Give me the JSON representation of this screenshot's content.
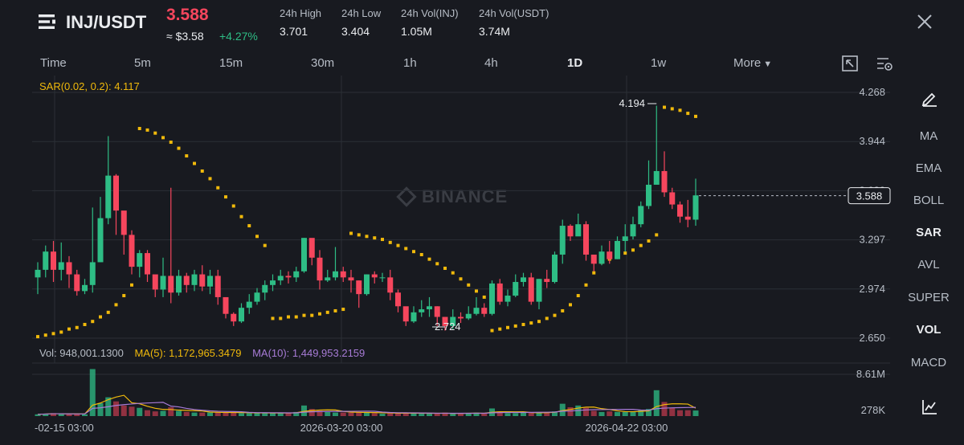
{
  "header": {
    "pair": "INJ/USDT",
    "price": "3.588",
    "approx": "≈ $3.58",
    "change": "+4.27%",
    "stats": [
      {
        "label": "24h High",
        "value": "3.701"
      },
      {
        "label": "24h Low",
        "value": "3.404"
      },
      {
        "label": "24h Vol(INJ)",
        "value": "1.05M"
      },
      {
        "label": "24h Vol(USDT)",
        "value": "3.74M"
      }
    ]
  },
  "intervals": [
    "Time",
    "5m",
    "15m",
    "30m",
    "1h",
    "4h",
    "1D",
    "1w",
    "More"
  ],
  "active_interval": "1D",
  "sidebar": [
    "MA",
    "EMA",
    "BOLL",
    "SAR",
    "AVL",
    "SUPER",
    "VOL",
    "MACD"
  ],
  "active_indicators": [
    "SAR",
    "VOL"
  ],
  "watermark": "BINANCE",
  "chart_data": {
    "type": "candlestick",
    "sar_label": "SAR(0.02, 0.2): 4.117",
    "price_axis": [
      "4.268",
      "3.944",
      "3.620",
      "3.297",
      "2.974",
      "2.650"
    ],
    "current_price_label": "3.588",
    "high_marker": "4.194",
    "low_marker": "2.724",
    "volume_axis": [
      "8.61M",
      "278K"
    ],
    "volume_legend": {
      "vol": "Vol: 948,001.1300",
      "ma5": "MA(5): 1,172,965.3479",
      "ma10": "MA(10): 1,449,953.2159"
    },
    "x_labels": [
      "-02-15 03:00",
      "2026-03-20 03:00",
      "2026-04-22 03:00"
    ],
    "y_range": [
      2.65,
      4.268
    ],
    "vol_max": 8610000,
    "candles": [
      [
        3.05,
        3.1,
        3.15,
        2.94
      ],
      [
        3.1,
        3.22,
        3.26,
        3.05
      ],
      [
        3.22,
        3.1,
        3.29,
        3.02
      ],
      [
        3.1,
        3.15,
        3.28,
        3.03
      ],
      [
        3.15,
        3.07,
        3.19,
        2.98
      ],
      [
        3.07,
        2.96,
        3.1,
        2.93
      ],
      [
        2.96,
        3.0,
        3.04,
        2.94
      ],
      [
        3.0,
        3.15,
        3.51,
        2.95
      ],
      [
        3.15,
        3.44,
        3.58,
        3.15
      ],
      [
        3.44,
        3.72,
        3.98,
        3.4
      ],
      [
        3.72,
        3.49,
        3.73,
        3.33
      ],
      [
        3.49,
        3.33,
        3.48,
        3.2
      ],
      [
        3.33,
        3.12,
        3.36,
        3.07
      ],
      [
        3.12,
        3.21,
        3.23,
        3.05
      ],
      [
        3.21,
        3.07,
        3.23,
        3.02
      ],
      [
        3.07,
        2.97,
        3.06,
        2.92
      ],
      [
        2.97,
        3.06,
        3.18,
        2.92
      ],
      [
        3.06,
        2.95,
        3.64,
        2.88
      ],
      [
        2.95,
        3.06,
        3.1,
        2.93
      ],
      [
        3.06,
        3.0,
        3.08,
        2.95
      ],
      [
        3.0,
        3.07,
        3.1,
        2.96
      ],
      [
        3.07,
        2.99,
        3.13,
        2.96
      ],
      [
        2.99,
        3.06,
        3.1,
        2.94
      ],
      [
        3.06,
        2.92,
        3.1,
        2.87
      ],
      [
        2.92,
        2.81,
        2.91,
        2.78
      ],
      [
        2.81,
        2.76,
        2.82,
        2.73
      ],
      [
        2.76,
        2.85,
        2.88,
        2.75
      ],
      [
        2.85,
        2.89,
        2.94,
        2.81
      ],
      [
        2.89,
        2.95,
        2.98,
        2.87
      ],
      [
        2.95,
        3.0,
        3.03,
        2.9
      ],
      [
        3.0,
        3.03,
        3.07,
        2.96
      ],
      [
        3.03,
        3.06,
        3.1,
        3.0
      ],
      [
        3.06,
        3.05,
        3.09,
        3.01
      ],
      [
        3.05,
        3.09,
        3.12,
        3.02
      ],
      [
        3.09,
        3.31,
        3.31,
        3.08
      ],
      [
        3.31,
        3.18,
        3.29,
        3.13
      ],
      [
        3.18,
        3.03,
        3.23,
        2.97
      ],
      [
        3.03,
        3.05,
        3.1,
        3.02
      ],
      [
        3.05,
        3.09,
        3.25,
        3.03
      ],
      [
        3.09,
        3.05,
        3.12,
        3.02
      ],
      [
        3.05,
        3.03,
        3.1,
        2.95
      ],
      [
        3.03,
        2.94,
        3.03,
        2.85
      ],
      [
        2.94,
        3.07,
        3.07,
        2.93
      ],
      [
        3.07,
        3.05,
        3.09,
        3.01
      ],
      [
        3.05,
        3.05,
        3.08,
        3.02
      ],
      [
        3.05,
        2.95,
        3.1,
        2.9
      ],
      [
        2.95,
        2.86,
        2.97,
        2.82
      ],
      [
        2.86,
        2.76,
        2.84,
        2.73
      ],
      [
        2.76,
        2.82,
        2.86,
        2.75
      ],
      [
        2.82,
        2.84,
        2.9,
        2.79
      ],
      [
        2.84,
        2.86,
        2.92,
        2.79
      ],
      [
        2.86,
        2.79,
        2.86,
        2.73
      ],
      [
        2.79,
        2.73,
        2.79,
        2.7
      ],
      [
        2.73,
        2.79,
        2.84,
        2.71
      ],
      [
        2.79,
        2.78,
        2.82,
        2.75
      ],
      [
        2.78,
        2.81,
        2.86,
        2.77
      ],
      [
        2.81,
        2.85,
        2.92,
        2.8
      ],
      [
        2.85,
        2.81,
        2.88,
        2.79
      ],
      [
        2.81,
        3.01,
        3.03,
        2.8
      ],
      [
        3.01,
        2.89,
        3.04,
        2.87
      ],
      [
        2.89,
        2.93,
        2.97,
        2.86
      ],
      [
        2.93,
        3.02,
        3.07,
        2.92
      ],
      [
        3.02,
        3.05,
        3.08,
        2.99
      ],
      [
        3.05,
        2.89,
        3.08,
        2.87
      ],
      [
        2.89,
        3.04,
        3.04,
        2.84
      ],
      [
        3.04,
        3.02,
        3.1,
        2.98
      ],
      [
        3.02,
        3.2,
        3.22,
        3.01
      ],
      [
        3.2,
        3.39,
        3.43,
        3.14
      ],
      [
        3.39,
        3.32,
        3.4,
        3.29
      ],
      [
        3.32,
        3.4,
        3.47,
        3.33
      ],
      [
        3.4,
        3.2,
        3.42,
        3.16
      ],
      [
        3.2,
        3.14,
        3.19,
        3.09
      ],
      [
        3.14,
        3.22,
        3.26,
        3.13
      ],
      [
        3.22,
        3.17,
        3.29,
        3.14
      ],
      [
        3.17,
        3.29,
        3.32,
        3.17
      ],
      [
        3.29,
        3.32,
        3.4,
        3.22
      ],
      [
        3.32,
        3.4,
        3.45,
        3.3
      ],
      [
        3.4,
        3.52,
        3.55,
        3.38
      ],
      [
        3.52,
        3.66,
        3.82,
        3.5
      ],
      [
        3.66,
        3.75,
        4.18,
        3.7
      ],
      [
        3.75,
        3.61,
        3.88,
        3.58
      ],
      [
        3.61,
        3.53,
        3.64,
        3.5
      ],
      [
        3.53,
        3.45,
        3.55,
        3.41
      ],
      [
        3.45,
        3.43,
        3.56,
        3.38
      ],
      [
        3.43,
        3.59,
        3.7,
        3.39
      ]
    ],
    "volumes": [
      0.3,
      0.4,
      0.5,
      0.4,
      0.3,
      0.3,
      0.3,
      8.0,
      2.2,
      3.2,
      2.5,
      1.8,
      1.6,
      1.4,
      1.0,
      0.8,
      0.9,
      1.5,
      0.9,
      0.7,
      0.6,
      0.6,
      0.6,
      0.7,
      0.6,
      0.6,
      0.5,
      0.5,
      0.5,
      0.6,
      0.5,
      0.5,
      0.5,
      0.7,
      1.8,
      1.2,
      0.9,
      0.7,
      0.6,
      0.6,
      0.6,
      0.7,
      0.6,
      0.5,
      0.4,
      0.5,
      0.5,
      0.6,
      0.5,
      0.4,
      0.4,
      0.5,
      0.6,
      0.4,
      0.4,
      0.5,
      0.6,
      0.5,
      1.3,
      0.8,
      0.5,
      0.5,
      0.6,
      0.6,
      0.6,
      0.6,
      0.8,
      2.1,
      1.5,
      1.8,
      1.4,
      0.9,
      0.7,
      0.8,
      0.7,
      0.7,
      0.8,
      1.0,
      1.2,
      4.4,
      2.4,
      1.4,
      1.0,
      1.0,
      0.95
    ],
    "sar": [
      [
        0,
        2.66
      ],
      [
        1,
        2.67
      ],
      [
        2,
        2.68
      ],
      [
        3,
        2.69
      ],
      [
        4,
        2.71
      ],
      [
        5,
        2.72
      ],
      [
        6,
        2.74
      ],
      [
        7,
        2.76
      ],
      [
        8,
        2.79
      ],
      [
        9,
        2.82
      ],
      [
        10,
        2.87
      ],
      [
        11,
        2.93
      ],
      [
        12,
        3.0
      ],
      [
        13,
        4.03
      ],
      [
        14,
        4.02
      ],
      [
        15,
        4.0
      ],
      [
        16,
        3.97
      ],
      [
        17,
        3.94
      ],
      [
        18,
        3.9
      ],
      [
        19,
        3.85
      ],
      [
        20,
        3.8
      ],
      [
        21,
        3.75
      ],
      [
        22,
        3.7
      ],
      [
        23,
        3.64
      ],
      [
        24,
        3.58
      ],
      [
        25,
        3.52
      ],
      [
        26,
        3.45
      ],
      [
        27,
        3.39
      ],
      [
        28,
        3.32
      ],
      [
        29,
        3.26
      ],
      [
        30,
        2.78
      ],
      [
        31,
        2.78
      ],
      [
        32,
        2.79
      ],
      [
        33,
        2.79
      ],
      [
        34,
        2.8
      ],
      [
        35,
        2.8
      ],
      [
        36,
        2.81
      ],
      [
        37,
        2.82
      ],
      [
        38,
        2.83
      ],
      [
        39,
        2.84
      ],
      [
        40,
        3.34
      ],
      [
        41,
        3.33
      ],
      [
        42,
        3.32
      ],
      [
        43,
        3.31
      ],
      [
        44,
        3.3
      ],
      [
        45,
        3.28
      ],
      [
        46,
        3.26
      ],
      [
        47,
        3.24
      ],
      [
        48,
        3.22
      ],
      [
        49,
        3.2
      ],
      [
        50,
        3.17
      ],
      [
        51,
        3.14
      ],
      [
        52,
        3.11
      ],
      [
        53,
        3.08
      ],
      [
        54,
        3.04
      ],
      [
        55,
        3.0
      ],
      [
        56,
        2.96
      ],
      [
        57,
        2.92
      ],
      [
        58,
        2.7
      ],
      [
        59,
        2.71
      ],
      [
        60,
        2.72
      ],
      [
        61,
        2.73
      ],
      [
        62,
        2.74
      ],
      [
        63,
        2.75
      ],
      [
        64,
        2.76
      ],
      [
        65,
        2.78
      ],
      [
        66,
        2.8
      ],
      [
        67,
        2.83
      ],
      [
        68,
        2.87
      ],
      [
        69,
        2.93
      ],
      [
        70,
        3.0
      ],
      [
        71,
        3.08
      ],
      [
        72,
        3.15
      ],
      [
        73,
        3.17
      ],
      [
        74,
        3.19
      ],
      [
        75,
        3.21
      ],
      [
        76,
        3.23
      ],
      [
        77,
        3.26
      ],
      [
        78,
        3.29
      ],
      [
        79,
        3.33
      ],
      [
        80,
        4.17
      ],
      [
        81,
        4.16
      ],
      [
        82,
        4.15
      ],
      [
        83,
        4.13
      ],
      [
        84,
        4.11
      ]
    ]
  }
}
